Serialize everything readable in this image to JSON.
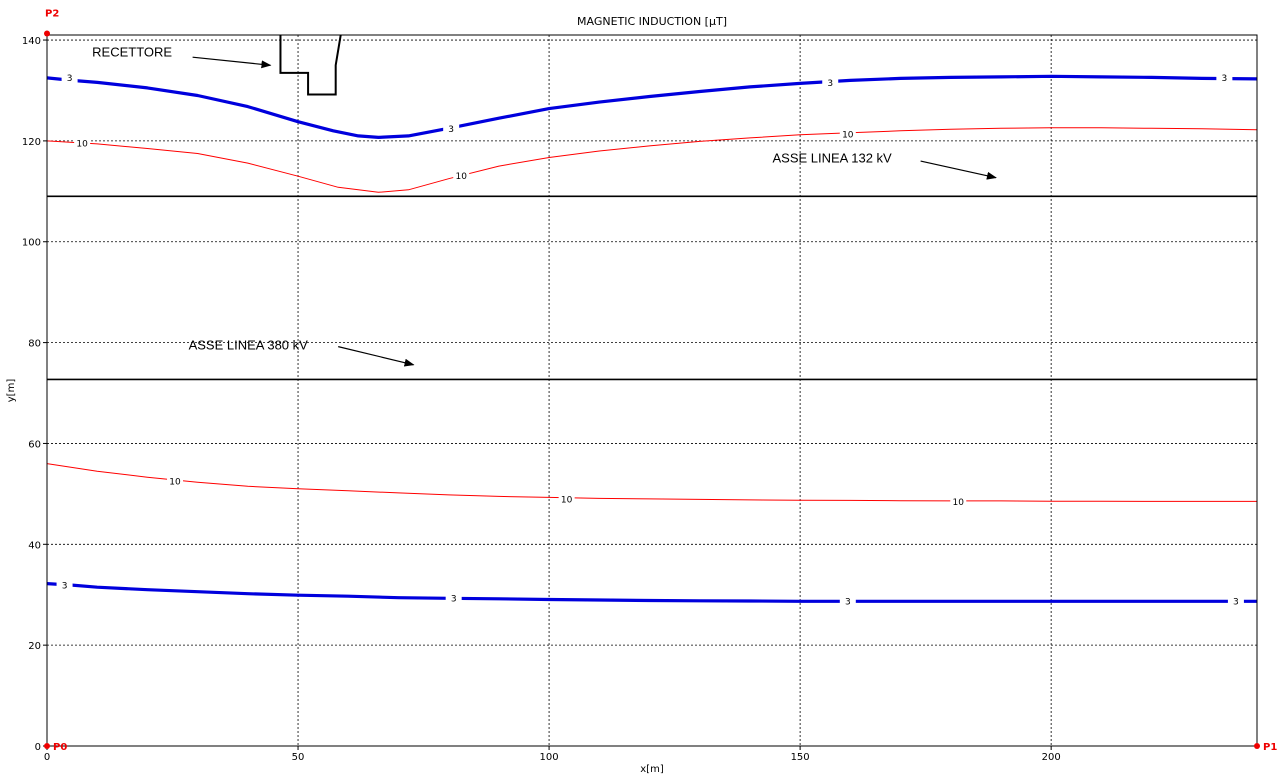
{
  "chart_data": {
    "type": "line",
    "title": "MAGNETIC INDUCTION [µT]",
    "xlabel": "x[m]",
    "ylabel": "y[m]",
    "xlim": [
      0,
      241
    ],
    "ylim": [
      0,
      141
    ],
    "x_ticks": [
      0,
      50,
      100,
      150,
      200
    ],
    "y_ticks": [
      0,
      20,
      40,
      60,
      80,
      100,
      120,
      140
    ],
    "grid": true,
    "colors": {
      "level_3": "#0000dd",
      "level_10": "#ff0000",
      "axes": "#000000",
      "points": "#ee0000"
    },
    "series": [
      {
        "name": "3",
        "level": 3,
        "group": "upper",
        "points": [
          [
            0,
            132.5
          ],
          [
            5,
            132
          ],
          [
            10,
            131.6
          ],
          [
            20,
            130.5
          ],
          [
            30,
            129
          ],
          [
            40,
            126.8
          ],
          [
            50,
            123.8
          ],
          [
            57,
            122
          ],
          [
            62,
            121
          ],
          [
            66,
            120.7
          ],
          [
            72,
            121
          ],
          [
            80,
            122.5
          ],
          [
            90,
            124.5
          ],
          [
            100,
            126.4
          ],
          [
            110,
            127.7
          ],
          [
            120,
            128.8
          ],
          [
            130,
            129.8
          ],
          [
            140,
            130.7
          ],
          [
            150,
            131.4
          ],
          [
            160,
            132
          ],
          [
            170,
            132.4
          ],
          [
            180,
            132.6
          ],
          [
            190,
            132.7
          ],
          [
            200,
            132.8
          ],
          [
            210,
            132.7
          ],
          [
            220,
            132.6
          ],
          [
            230,
            132.4
          ],
          [
            241,
            132.3
          ]
        ],
        "labels": [
          [
            4.5,
            132.5
          ],
          [
            80.5,
            122.4
          ],
          [
            156,
            131.5
          ],
          [
            234.5,
            132.5
          ]
        ]
      },
      {
        "name": "10",
        "level": 10,
        "group": "upper",
        "points": [
          [
            0,
            120
          ],
          [
            10,
            119.4
          ],
          [
            20,
            118.5
          ],
          [
            30,
            117.5
          ],
          [
            40,
            115.6
          ],
          [
            50,
            113
          ],
          [
            58,
            110.8
          ],
          [
            66,
            109.8
          ],
          [
            72,
            110.3
          ],
          [
            80,
            112.5
          ],
          [
            90,
            115
          ],
          [
            100,
            116.7
          ],
          [
            110,
            118
          ],
          [
            120,
            119
          ],
          [
            130,
            119.9
          ],
          [
            140,
            120.6
          ],
          [
            150,
            121.2
          ],
          [
            160,
            121.6
          ],
          [
            170,
            122
          ],
          [
            180,
            122.3
          ],
          [
            190,
            122.5
          ],
          [
            200,
            122.6
          ],
          [
            210,
            122.6
          ],
          [
            220,
            122.5
          ],
          [
            230,
            122.4
          ],
          [
            241,
            122.2
          ]
        ],
        "labels": [
          [
            7,
            119.5
          ],
          [
            82.5,
            113
          ],
          [
            159.5,
            121.3
          ]
        ]
      },
      {
        "name": "10",
        "level": 10,
        "group": "lower",
        "points": [
          [
            0,
            56
          ],
          [
            10,
            54.5
          ],
          [
            20,
            53.3
          ],
          [
            30,
            52.3
          ],
          [
            40,
            51.5
          ],
          [
            50,
            51
          ],
          [
            60,
            50.6
          ],
          [
            70,
            50.2
          ],
          [
            80,
            49.8
          ],
          [
            90,
            49.5
          ],
          [
            100,
            49.3
          ],
          [
            110,
            49.1
          ],
          [
            120,
            49
          ],
          [
            130,
            48.9
          ],
          [
            140,
            48.8
          ],
          [
            150,
            48.75
          ],
          [
            160,
            48.7
          ],
          [
            170,
            48.65
          ],
          [
            180,
            48.6
          ],
          [
            190,
            48.6
          ],
          [
            200,
            48.55
          ],
          [
            210,
            48.55
          ],
          [
            220,
            48.5
          ],
          [
            230,
            48.5
          ],
          [
            241,
            48.5
          ]
        ],
        "labels": [
          [
            25.5,
            52.5
          ],
          [
            103.5,
            48.9
          ],
          [
            181.5,
            48.4
          ]
        ]
      },
      {
        "name": "3",
        "level": 3,
        "group": "lower",
        "points": [
          [
            0,
            32.2
          ],
          [
            5,
            31.9
          ],
          [
            10,
            31.5
          ],
          [
            20,
            31
          ],
          [
            30,
            30.6
          ],
          [
            40,
            30.2
          ],
          [
            50,
            29.9
          ],
          [
            60,
            29.7
          ],
          [
            70,
            29.4
          ],
          [
            80,
            29.3
          ],
          [
            90,
            29.2
          ],
          [
            100,
            29.05
          ],
          [
            110,
            28.95
          ],
          [
            120,
            28.85
          ],
          [
            130,
            28.8
          ],
          [
            140,
            28.75
          ],
          [
            150,
            28.7
          ],
          [
            160,
            28.7
          ],
          [
            170,
            28.7
          ],
          [
            180,
            28.7
          ],
          [
            190,
            28.7
          ],
          [
            200,
            28.7
          ],
          [
            210,
            28.7
          ],
          [
            220,
            28.7
          ],
          [
            230,
            28.7
          ],
          [
            241,
            28.7
          ]
        ],
        "labels": [
          [
            3.5,
            31.8
          ],
          [
            81,
            29.3
          ],
          [
            159.5,
            28.7
          ],
          [
            236.8,
            28.7
          ]
        ]
      }
    ],
    "reference_lines": [
      {
        "name": "ASSE LINEA 132 kV",
        "y": 109,
        "label": "ASSE LINEA 132 kV",
        "label_at": [
          144.5,
          115.7
        ],
        "arrow_from": [
          174,
          116
        ],
        "arrow_to": [
          189,
          112.7
        ]
      },
      {
        "name": "ASSE LINEA 380 kV",
        "y": 72.7,
        "label": "ASSE LINEA 380 kV",
        "label_at": [
          28.2,
          78.6
        ],
        "arrow_from": [
          58,
          79.2
        ],
        "arrow_to": [
          73,
          75.6
        ]
      }
    ],
    "receptor": {
      "label": "RECETTORE",
      "label_at": [
        9,
        136.7
      ],
      "arrow_from": [
        29,
        136.6
      ],
      "arrow_to": [
        44.5,
        135
      ],
      "outline": [
        [
          46.5,
          144
        ],
        [
          46.5,
          133.5
        ],
        [
          52,
          133.5
        ],
        [
          52,
          129.2
        ],
        [
          57.5,
          129.2
        ],
        [
          57.5,
          135
        ],
        [
          58.5,
          141
        ],
        [
          58.5,
          144
        ]
      ]
    },
    "points": [
      {
        "name": "P2",
        "x": 0,
        "y": 141.3,
        "label_offset": "top"
      },
      {
        "name": "P0",
        "x": 0,
        "y": 0,
        "label_offset": "right"
      },
      {
        "name": "P1",
        "x": 241,
        "y": 0,
        "label_offset": "right"
      }
    ]
  }
}
